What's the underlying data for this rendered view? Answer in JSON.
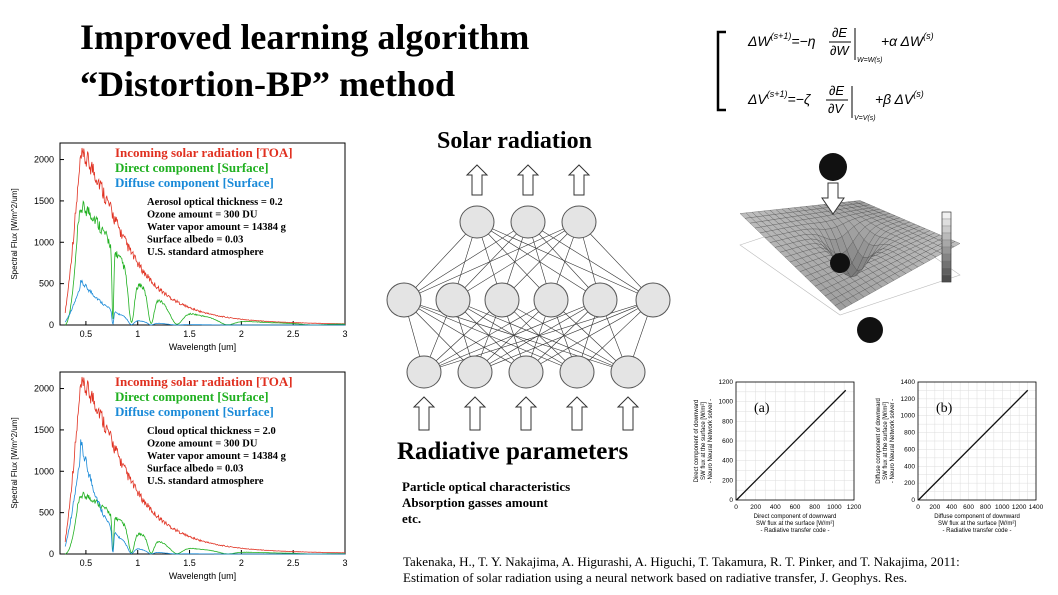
{
  "title": {
    "line1": "Improved learning algorithm",
    "line2": "“Distortion-BP” method"
  },
  "equations": {
    "eq1": "ΔW(s+1) = −η ∂E/∂W |W=W(s) + α ΔW(s)",
    "eq2": "ΔV(s+1) = −ζ ∂E/∂V |V=V(s) + β ΔV(s)"
  },
  "network": {
    "top_label": "Solar radiation",
    "bottom_label": "Radiative parameters",
    "notes": [
      "Particle optical characteristics",
      "Absorption gasses amount",
      "etc."
    ]
  },
  "spectra": [
    {
      "legend": [
        "Incoming solar radiation [TOA]",
        "Direct component [Surface]",
        "Diffuse component [Surface]"
      ],
      "info": [
        "Aerosol optical thickness = 0.2",
        "Ozone amount = 300 DU",
        "Water vapor amount = 14384 g",
        "Surface albedo = 0.03",
        "U.S. standard atmosphere"
      ],
      "direct_peak": 1400,
      "diffuse_peak": 450
    },
    {
      "legend": [
        "Incoming solar radiation [TOA]",
        "Direct component [Surface]",
        "Diffuse component [Surface]"
      ],
      "info": [
        "Cloud optical thickness = 2.0",
        "Ozone amount = 300 DU",
        "Water vapor amount = 14384 g",
        "Surface albedo = 0.03",
        "U.S. standard atmosphere"
      ],
      "direct_peak": 700,
      "diffuse_peak": 1150
    }
  ],
  "spectra_axes": {
    "xlabel": "Wavelength [um]",
    "ylabel": "Spectral Flux [W/m^2/um]",
    "xticks": [
      "0.5",
      "1",
      "1.5",
      "2",
      "2.5",
      "3"
    ],
    "yticks": [
      "0",
      "500",
      "1000",
      "1500",
      "2000"
    ],
    "colors": {
      "toa": "#e03020",
      "direct": "#20b020",
      "diffuse": "#1a8ad8"
    }
  },
  "scatter": [
    {
      "tag": "(a)",
      "ylabel": [
        "Direct component of downward",
        "SW flux at the surface [W/m²]",
        "- Neuro Neural Network solver -"
      ],
      "xlabel": [
        "Direct component of downward",
        "SW flux at the surface [W/m²]",
        "- Radiative transfer code -"
      ],
      "ticks": [
        "0",
        "200",
        "400",
        "600",
        "800",
        "1000",
        "1200"
      ]
    },
    {
      "tag": "(b)",
      "ylabel": [
        "Diffuse component of downward",
        "SW flux at the surface [W/m²]",
        "- Neuro Neural Network solver -"
      ],
      "xlabel": [
        "Diffuse component of downward",
        "SW flux at the surface [W/m²]",
        "- Radiative transfer code -"
      ],
      "ticks": [
        "0",
        "200",
        "400",
        "600",
        "800",
        "1000",
        "1200",
        "1400"
      ]
    }
  ],
  "citation": {
    "line1": "Takenaka, H., T. Y. Nakajima, A. Higurashi, A. Higuchi, T. Takamura, R. T. Pinker, and T. Nakajima, 2011:",
    "line2": "Estimation of solar radiation using a neural network based on radiative transfer, J. Geophys. Res."
  }
}
